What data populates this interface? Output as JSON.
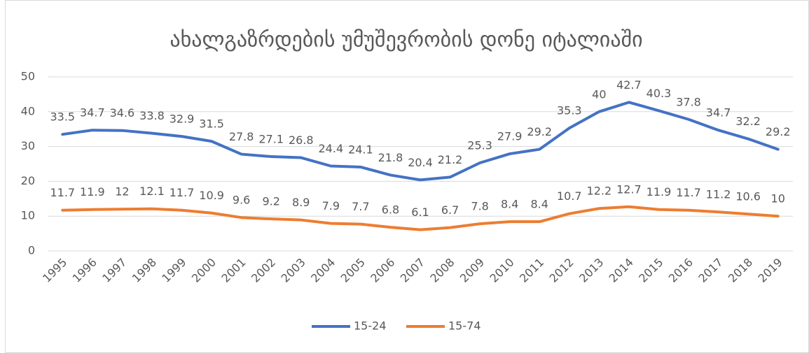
{
  "chart_data": {
    "type": "line",
    "title": "ახალგაზრდების უმუშევრობის დონე იტალიაში",
    "categories": [
      "1995",
      "1996",
      "1997",
      "1998",
      "1999",
      "2000",
      "2001",
      "2002",
      "2003",
      "2004",
      "2005",
      "2006",
      "2007",
      "2008",
      "2009",
      "2010",
      "2011",
      "2012",
      "2013",
      "2014",
      "2015",
      "2016",
      "2017",
      "2018",
      "2019"
    ],
    "series": [
      {
        "name": "15-24",
        "color": "#4472c4",
        "values": [
          33.5,
          34.7,
          34.6,
          33.8,
          32.9,
          31.5,
          27.8,
          27.1,
          26.8,
          24.4,
          24.1,
          21.8,
          20.4,
          21.2,
          25.3,
          27.9,
          29.2,
          35.3,
          40,
          42.7,
          40.3,
          37.8,
          34.7,
          32.2,
          29.2
        ]
      },
      {
        "name": "15-74",
        "color": "#ed7d31",
        "values": [
          11.7,
          11.9,
          12,
          12.1,
          11.7,
          10.9,
          9.6,
          9.2,
          8.9,
          7.9,
          7.7,
          6.8,
          6.1,
          6.7,
          7.8,
          8.4,
          8.4,
          10.7,
          12.2,
          12.7,
          11.9,
          11.7,
          11.2,
          10.6,
          10
        ]
      }
    ],
    "ylim": [
      0,
      50
    ],
    "yticks": [
      0,
      10,
      20,
      30,
      40,
      50
    ],
    "grid": true,
    "legend": "bottom"
  }
}
